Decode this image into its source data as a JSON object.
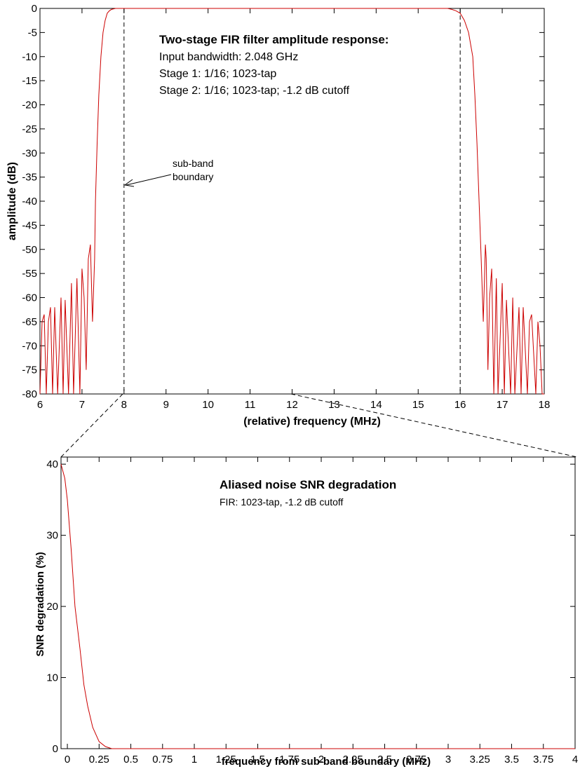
{
  "chart_data": [
    {
      "type": "line",
      "xlabel": "(relative) frequency (MHz)",
      "ylabel": "amplitude (dB)",
      "xlim": [
        6,
        18
      ],
      "ylim": [
        -80,
        0
      ],
      "x_ticks": [
        6,
        7,
        8,
        9,
        10,
        11,
        12,
        13,
        14,
        15,
        16,
        17,
        18
      ],
      "y_ticks": [
        0,
        -5,
        -10,
        -15,
        -20,
        -25,
        -30,
        -35,
        -40,
        -45,
        -50,
        -55,
        -60,
        -65,
        -70,
        -75,
        -80
      ],
      "annotation": {
        "title": "Two-stage FIR filter amplitude response:",
        "lines": [
          "Input bandwidth: 2.048 GHz",
          "Stage 1: 1/16; 1023-tap",
          "Stage 2: 1/16; 1023-tap; -1.2 dB cutoff"
        ]
      },
      "boundary_label": [
        "sub-band",
        "boundary"
      ],
      "boundaries": [
        8,
        16
      ],
      "line_color": "#cc0000",
      "series": [
        {
          "x": [
            6.0,
            6.05,
            6.1,
            6.15,
            6.2,
            6.25,
            6.3,
            6.35,
            6.42,
            6.5,
            6.55,
            6.6,
            6.68,
            6.75,
            6.8,
            6.88,
            6.95,
            7.0,
            7.05,
            7.1,
            7.15,
            7.2,
            7.25,
            7.3,
            7.32,
            7.36,
            7.4,
            7.45,
            7.5,
            7.55,
            7.6,
            7.65,
            7.7,
            7.8,
            7.9,
            8.0,
            8.1,
            8.2,
            8.3,
            8.5,
            9,
            10,
            11,
            12,
            13,
            14,
            15,
            15.5,
            15.7,
            15.8,
            15.9,
            16.0,
            16.1,
            16.2,
            16.3,
            16.35,
            16.4,
            16.45,
            16.5,
            16.55,
            16.6,
            16.62,
            16.66,
            16.7,
            16.75,
            16.8,
            16.86,
            16.9,
            17.0,
            17.05,
            17.1,
            17.2,
            17.25,
            17.3,
            17.4,
            17.45,
            17.5,
            17.6,
            17.65,
            17.7,
            17.8,
            17.85,
            17.9,
            17.95,
            18.0
          ],
          "y": [
            -80,
            -65,
            -63.5,
            -80,
            -65,
            -62,
            -80,
            -62,
            -80,
            -60,
            -80,
            -60.5,
            -80,
            -57,
            -80,
            -56,
            -80,
            -54,
            -60,
            -75,
            -52,
            -49,
            -65,
            -52,
            -40,
            -28,
            -18,
            -10,
            -5,
            -2.5,
            -1,
            -0.5,
            -0.2,
            0,
            0,
            0,
            0,
            0,
            0,
            0,
            0,
            0,
            0,
            0,
            0,
            0,
            0,
            0,
            0,
            -0.2,
            -0.5,
            -1,
            -2.5,
            -5,
            -10,
            -18,
            -28,
            -40,
            -52,
            -65,
            -49,
            -52,
            -75,
            -60,
            -54,
            -80,
            -56,
            -80,
            -57,
            -80,
            -60.5,
            -80,
            -60,
            -80,
            -62,
            -80,
            -62,
            -80,
            -65,
            -63.5,
            -80,
            -65,
            -70,
            -80,
            -80
          ]
        }
      ]
    },
    {
      "type": "line",
      "xlabel": "frequency from sub-band boundary (MHz)",
      "ylabel": "SNR degradation (%)",
      "xlim": [
        -0.05,
        4
      ],
      "ylim": [
        0,
        41
      ],
      "x_ticks": [
        0,
        0.25,
        0.5,
        0.75,
        1,
        1.25,
        1.5,
        1.75,
        2,
        2.25,
        2.5,
        2.75,
        3,
        3.25,
        3.5,
        3.75,
        4
      ],
      "x_tick_labels": [
        "0",
        "0.25",
        "0.5",
        "0.75",
        "1",
        "1.25",
        "1.5",
        "1.75",
        "2",
        "2.25",
        "2.5",
        "2.75",
        "3",
        "3.25",
        "3.5",
        "3.75",
        "4"
      ],
      "y_ticks": [
        0,
        10,
        20,
        30,
        40
      ],
      "annotation": {
        "title": "Aliased noise SNR degradation",
        "lines": [
          "FIR: 1023-tap, -1.2 dB cutoff"
        ]
      },
      "line_color": "#cc0000",
      "series": [
        {
          "x": [
            -0.05,
            -0.02,
            0,
            0.03,
            0.06,
            0.1,
            0.13,
            0.16,
            0.2,
            0.25,
            0.3,
            0.35,
            0.4,
            0.5,
            1,
            2,
            3,
            4
          ],
          "y": [
            40,
            38,
            35,
            28,
            20,
            14,
            9,
            6,
            3,
            1,
            0.3,
            0,
            0,
            0,
            0,
            0,
            0,
            0
          ]
        }
      ]
    }
  ]
}
